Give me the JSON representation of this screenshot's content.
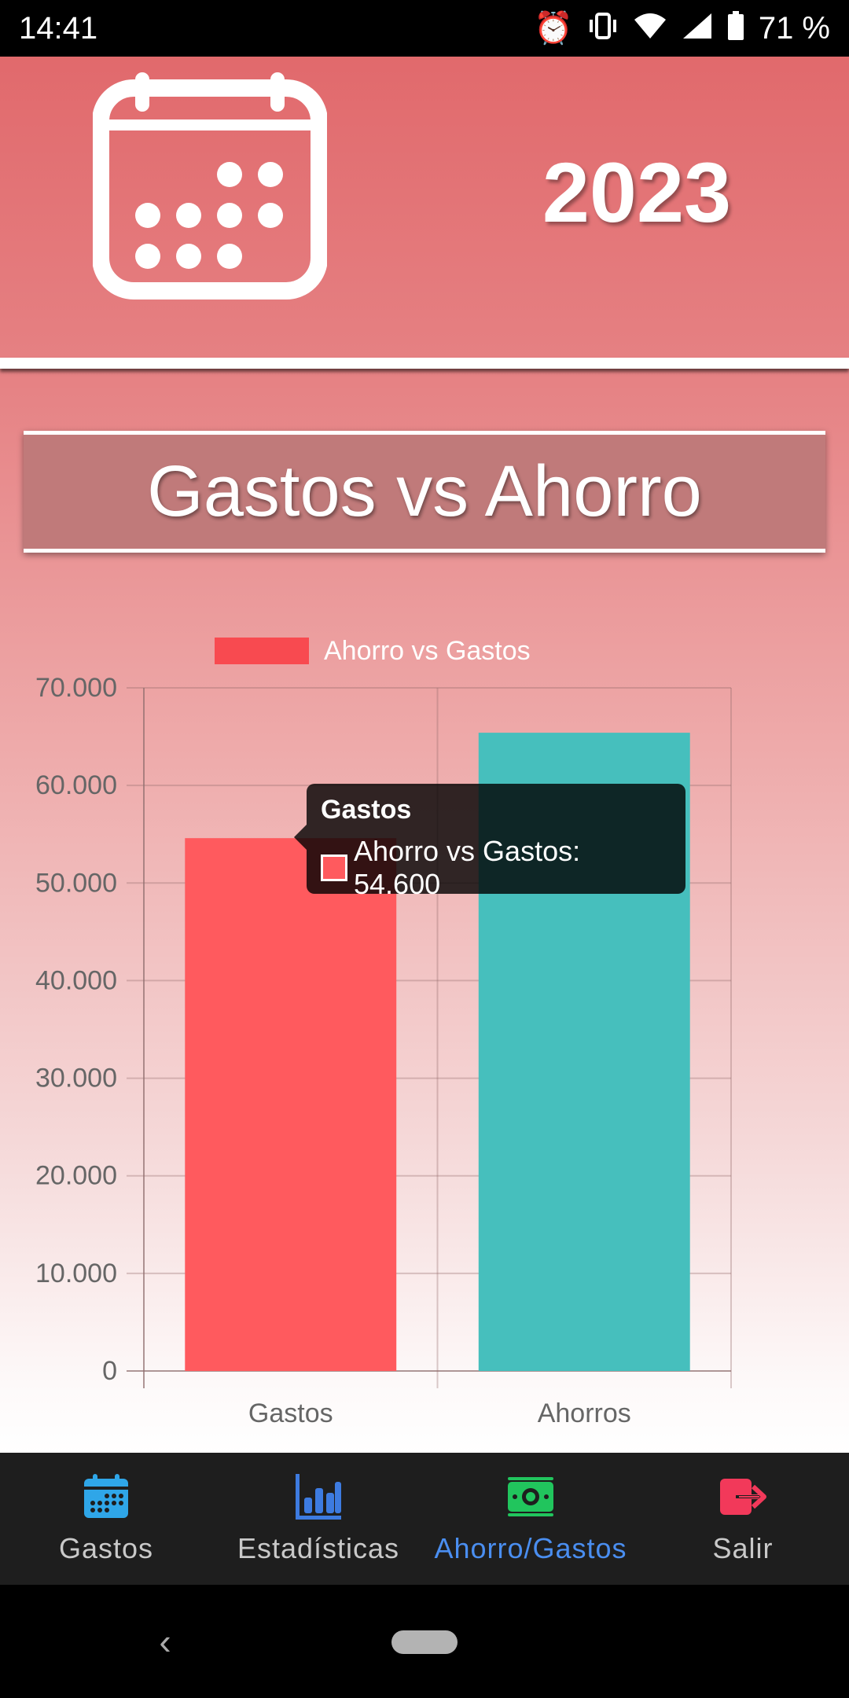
{
  "status_bar": {
    "time": "14:41",
    "battery": "71 %",
    "icons": [
      "alarm-icon",
      "vibrate-icon",
      "wifi-icon",
      "signal-icon",
      "battery-icon"
    ]
  },
  "header": {
    "icon": "calendar-icon",
    "year": "2023"
  },
  "title": "Gastos vs Ahorro",
  "chart_data": {
    "type": "bar",
    "categories": [
      "Gastos",
      "Ahorros"
    ],
    "series": [
      {
        "name": "Ahorro vs Gastos",
        "values": [
          54600,
          65400
        ]
      }
    ],
    "colors": [
      "#ff5a5e",
      "#46bfbd"
    ],
    "legend_color": "#f84a50",
    "ylim": [
      0,
      70000
    ],
    "yticks": [
      0,
      10000,
      20000,
      30000,
      40000,
      50000,
      60000,
      70000
    ],
    "ytick_labels": [
      "0",
      "10.000",
      "20.000",
      "30.000",
      "40.000",
      "50.000",
      "60.000",
      "70.000"
    ],
    "legend_position": "top",
    "grid": true,
    "tooltip": {
      "title": "Gastos",
      "label": "Ahorro vs Gastos: 54.600"
    }
  },
  "bottom_nav": [
    {
      "label": "Gastos",
      "icon": "calendar-icon",
      "color": "#2fa6e8",
      "active": false
    },
    {
      "label": "Estadísticas",
      "icon": "bar-chart-icon",
      "color": "#3d7be0",
      "active": false
    },
    {
      "label": "Ahorro/Gastos",
      "icon": "money-icon",
      "color": "#21c55d",
      "active": true
    },
    {
      "label": "Salir",
      "icon": "logout-icon",
      "color": "#f2395a",
      "active": false
    }
  ]
}
